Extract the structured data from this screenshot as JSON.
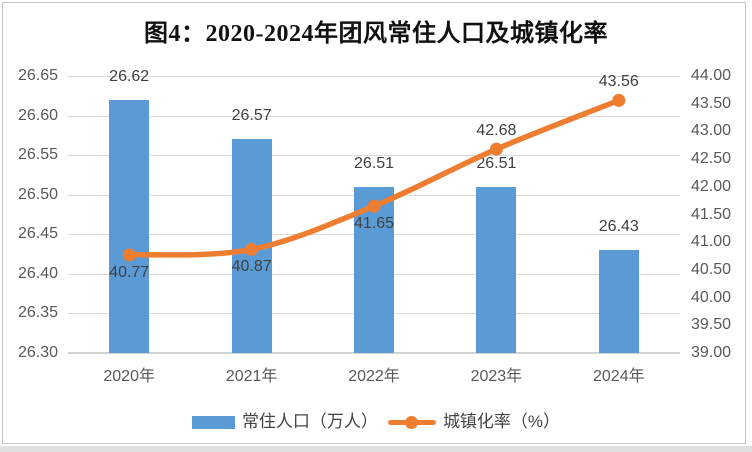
{
  "page": {
    "title": "图4：2020-2024年团风常住人口及城镇化率"
  },
  "chart_data": {
    "type": "combo",
    "title": "图4：2020-2024年团风常住人口及城镇化率",
    "categories": [
      "2020年",
      "2021年",
      "2022年",
      "2023年",
      "2024年"
    ],
    "series": [
      {
        "name": "常住人口（万人）",
        "type": "bar",
        "axis": "left",
        "values": [
          26.62,
          26.57,
          26.51,
          26.51,
          26.43
        ],
        "labels": [
          "26.62",
          "26.57",
          "26.51",
          "26.51",
          "26.43"
        ],
        "color": "#5B9BD5"
      },
      {
        "name": "城镇化率（%）",
        "type": "line",
        "axis": "right",
        "values": [
          40.77,
          40.87,
          41.65,
          42.68,
          43.56
        ],
        "labels": [
          "40.77",
          "40.87",
          "41.65",
          "42.68",
          "43.56"
        ],
        "label_positions": [
          "below",
          "below",
          "below",
          "above",
          "above"
        ],
        "smooth": true,
        "color": "#ED7D31"
      }
    ],
    "left_axis": {
      "min": 26.3,
      "max": 26.65,
      "ticks": [
        "26.65",
        "26.60",
        "26.55",
        "26.50",
        "26.45",
        "26.40",
        "26.35",
        "26.30"
      ]
    },
    "right_axis": {
      "min": 39.0,
      "max": 44.0,
      "ticks": [
        "44.00",
        "43.50",
        "43.00",
        "42.50",
        "42.00",
        "41.50",
        "41.00",
        "40.50",
        "40.00",
        "39.50",
        "39.00"
      ]
    },
    "grid": true,
    "legend_position": "bottom",
    "colors": {
      "grid": "#d9d9d9",
      "axis_text": "#595959",
      "data_label": "#404040",
      "bar": "#5B9BD5",
      "line": "#ED7D31"
    }
  },
  "legend": {
    "items": [
      {
        "label": "常住人口（万人）",
        "swatch": "bar",
        "color": "#5B9BD5"
      },
      {
        "label": "城镇化率（%）",
        "swatch": "line-dot",
        "color": "#ED7D31"
      }
    ]
  }
}
